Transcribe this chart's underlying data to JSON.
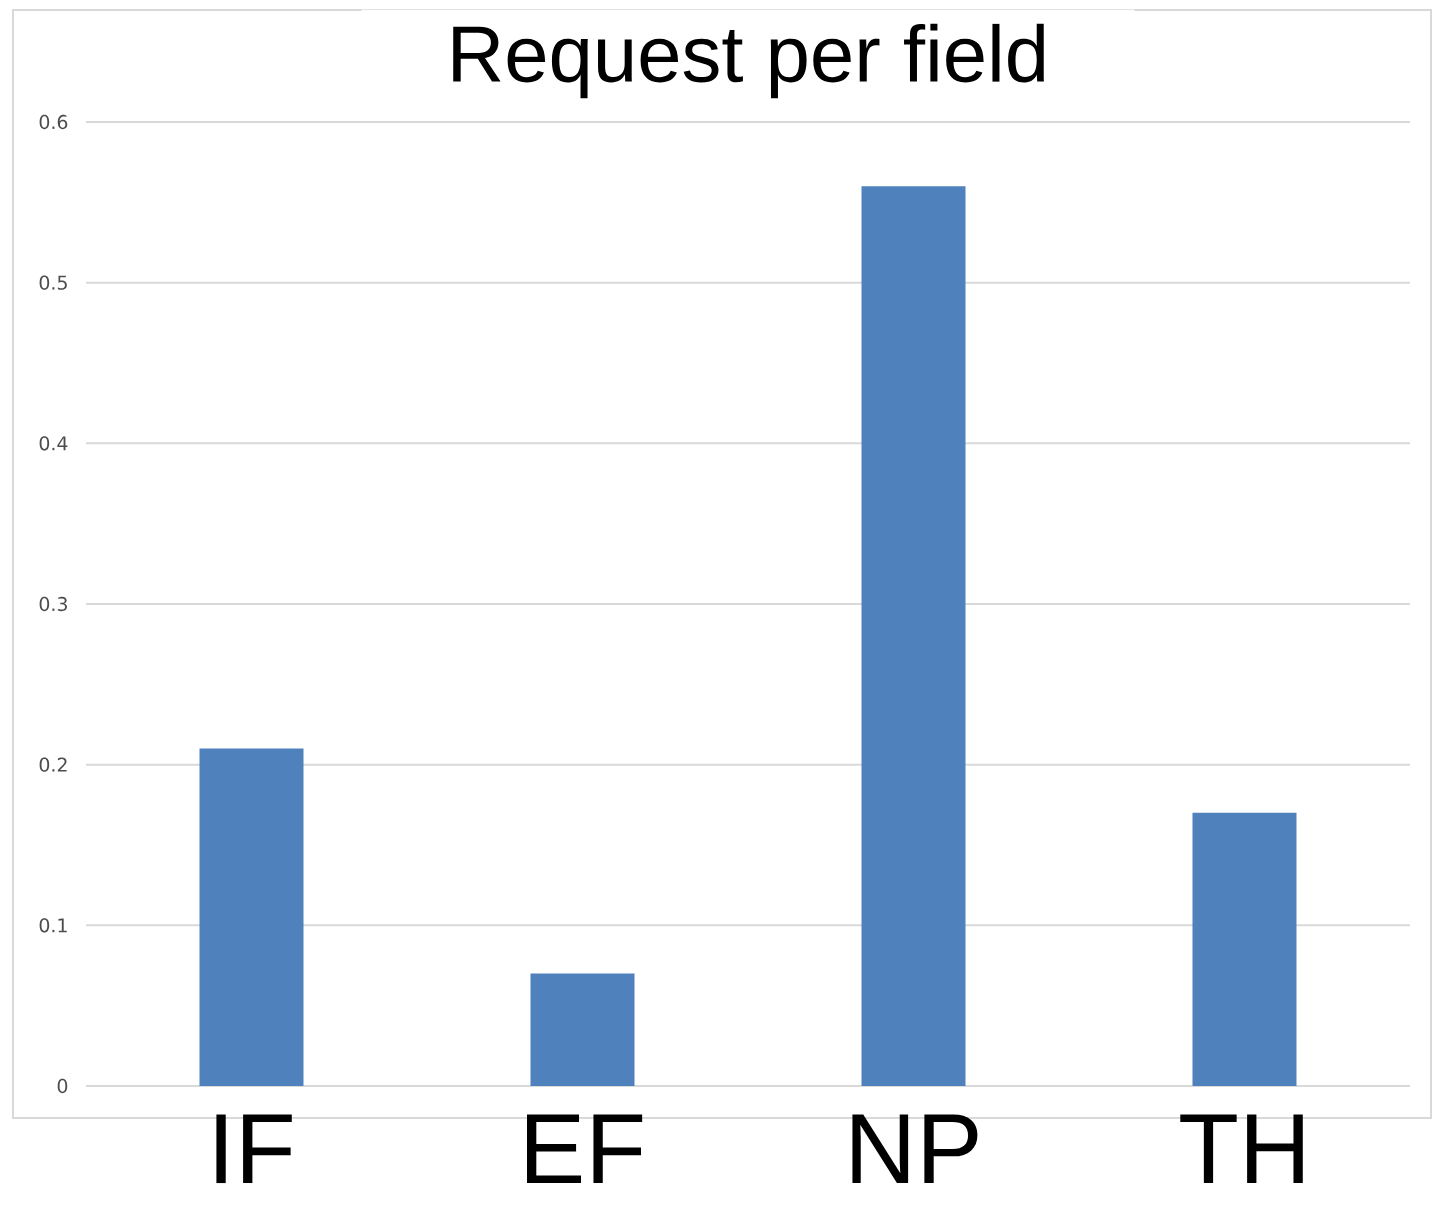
{
  "chart_data": {
    "type": "bar",
    "title": "Request per field",
    "categories": [
      "IF",
      "EF",
      "NP",
      "TH"
    ],
    "values": [
      0.21,
      0.07,
      0.56,
      0.17
    ],
    "color": "#4f81bd",
    "ylim": [
      0,
      0.6
    ],
    "yticks": [
      0,
      0.1,
      0.2,
      0.3,
      0.4,
      0.5,
      0.6
    ],
    "grid": "y"
  }
}
